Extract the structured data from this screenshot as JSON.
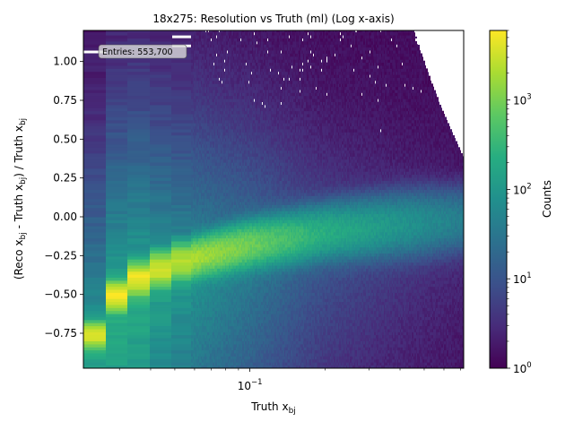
{
  "chart_data": {
    "type": "heatmap",
    "title": "18x275: Resolution vs Truth (ml) (Log x-axis)",
    "xlabel": {
      "main": "Truth x",
      "sub": "bj"
    },
    "ylabel": {
      "p1": "(Reco x",
      "s1": "bj",
      "p2": " - Truth x",
      "s2": "bj",
      "p3": ") / Truth x",
      "s3": "bj"
    },
    "x_scale": "log",
    "xlim": [
      0.0215,
      0.72
    ],
    "ylim": [
      -0.975,
      1.2
    ],
    "x_ticks": [
      {
        "value": 0.1,
        "label": "10",
        "exp": "−1"
      }
    ],
    "y_ticks": [
      {
        "value": -0.75,
        "label": "−0.75"
      },
      {
        "value": -0.5,
        "label": "−0.50"
      },
      {
        "value": -0.25,
        "label": "−0.25"
      },
      {
        "value": 0.0,
        "label": "0.00"
      },
      {
        "value": 0.25,
        "label": "0.25"
      },
      {
        "value": 0.5,
        "label": "0.50"
      },
      {
        "value": 0.75,
        "label": "0.75"
      },
      {
        "value": 1.0,
        "label": "1.00"
      }
    ],
    "annotation": "Entries: 553,700",
    "ridge": [
      {
        "x": 0.0235,
        "y": -0.78,
        "counts": 3500
      },
      {
        "x": 0.0295,
        "y": -0.5,
        "counts": 5500
      },
      {
        "x": 0.036,
        "y": -0.4,
        "counts": 5000
      },
      {
        "x": 0.045,
        "y": -0.33,
        "counts": 3000
      },
      {
        "x": 0.055,
        "y": -0.28,
        "counts": 2200
      },
      {
        "x": 0.1,
        "y": -0.18,
        "counts": 900
      },
      {
        "x": 0.2,
        "y": -0.1,
        "counts": 220
      },
      {
        "x": 0.4,
        "y": -0.05,
        "counts": 90
      },
      {
        "x": 0.7,
        "y": -0.02,
        "counts": 40
      }
    ],
    "colorbar": {
      "label": "Counts",
      "scale": "log",
      "range": [
        1,
        6000
      ],
      "colormap": "viridis",
      "ticks": [
        {
          "value": 1,
          "label": "10",
          "exp": "0"
        },
        {
          "value": 10,
          "label": "10",
          "exp": "1"
        },
        {
          "value": 100,
          "label": "10",
          "exp": "2"
        },
        {
          "value": 1000,
          "label": "10",
          "exp": "3"
        }
      ]
    }
  }
}
